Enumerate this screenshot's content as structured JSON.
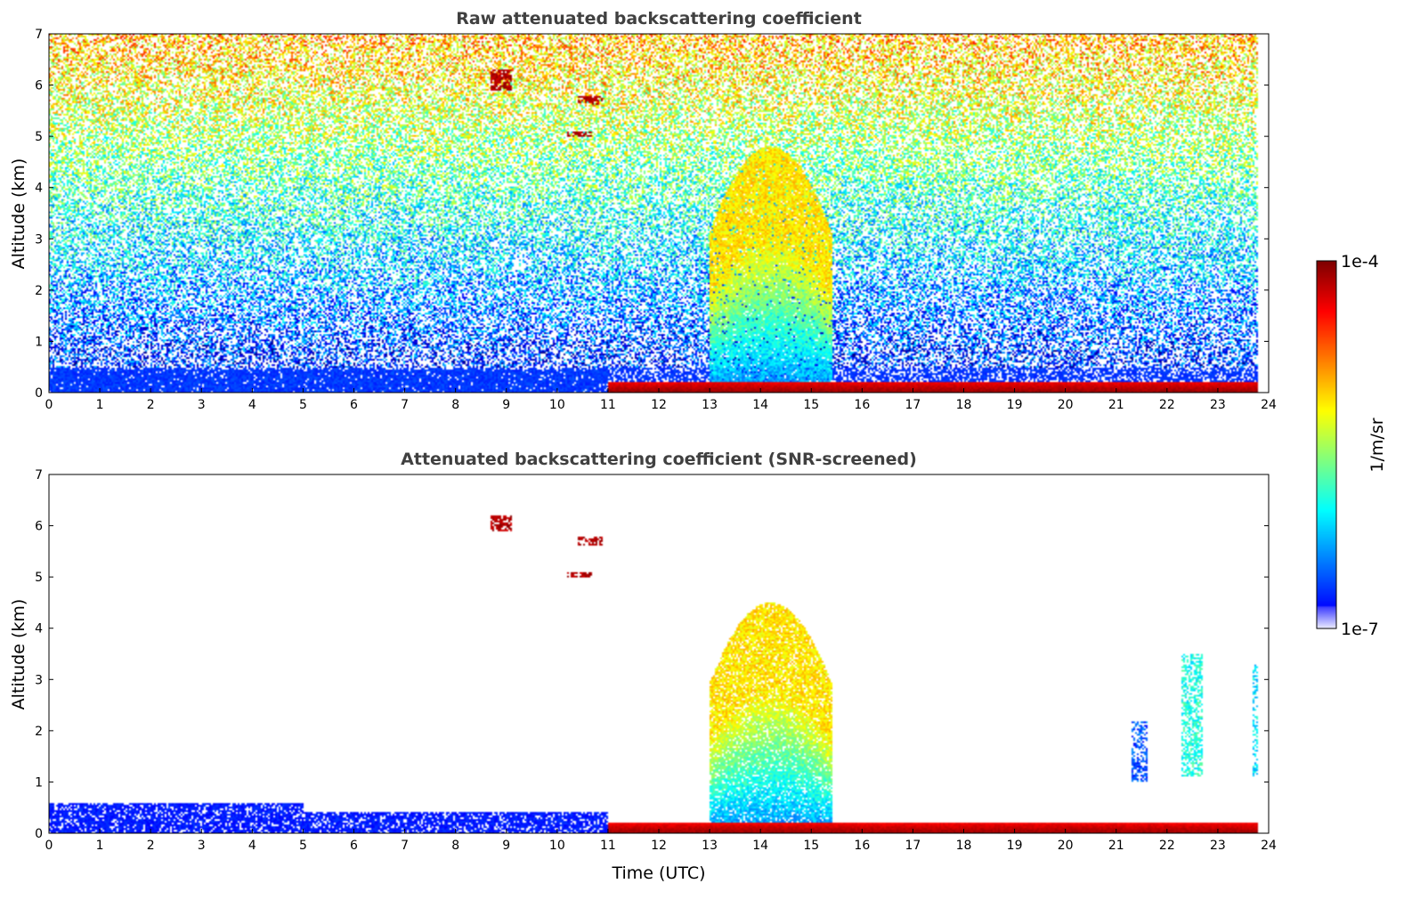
{
  "chart_data": [
    {
      "type": "heatmap",
      "title": "Raw attenuated backscattering coefficient",
      "xlabel": "",
      "ylabel": "Altitude (km)",
      "xlim": [
        0,
        24
      ],
      "ylim": [
        0,
        7
      ],
      "xticks": [
        0,
        1,
        2,
        3,
        4,
        5,
        6,
        7,
        8,
        9,
        10,
        11,
        12,
        13,
        14,
        15,
        16,
        17,
        18,
        19,
        20,
        21,
        22,
        23,
        24
      ],
      "yticks": [
        0,
        1,
        2,
        3,
        4,
        5,
        6,
        7
      ],
      "data_end_x": 23.8,
      "features": [
        {
          "kind": "noise_background",
          "x_range": [
            0,
            23.8
          ],
          "y_range": [
            0.5,
            7
          ],
          "level": "high at top, decreasing downward"
        },
        {
          "kind": "aerosol_layer",
          "x_range": [
            0,
            11
          ],
          "y_range": [
            0,
            0.45
          ],
          "level": 0.18
        },
        {
          "kind": "surface_band",
          "x_range": [
            11,
            23.8
          ],
          "y_range": [
            0,
            0.22
          ],
          "level": 0.98
        },
        {
          "kind": "plume",
          "x_range": [
            13,
            15.4
          ],
          "y_range": [
            0,
            4.8
          ],
          "level": 0.6
        },
        {
          "kind": "cloud",
          "x_range": [
            8.7,
            9.1
          ],
          "y_range": [
            5.9,
            6.3
          ],
          "level": 0.95
        },
        {
          "kind": "cloud",
          "x_range": [
            10.4,
            10.9
          ],
          "y_range": [
            5.6,
            5.8
          ],
          "level": 0.95
        },
        {
          "kind": "cloud",
          "x_range": [
            10.2,
            10.7
          ],
          "y_range": [
            5.0,
            5.1
          ],
          "level": 0.95
        }
      ]
    },
    {
      "type": "heatmap",
      "title": "Attenuated backscattering coefficient (SNR-screened)",
      "xlabel": "Time (UTC)",
      "ylabel": "Altitude (km)",
      "xlim": [
        0,
        24
      ],
      "ylim": [
        0,
        7
      ],
      "xticks": [
        0,
        1,
        2,
        3,
        4,
        5,
        6,
        7,
        8,
        9,
        10,
        11,
        12,
        13,
        14,
        15,
        16,
        17,
        18,
        19,
        20,
        21,
        22,
        23,
        24
      ],
      "yticks": [
        0,
        1,
        2,
        3,
        4,
        5,
        6,
        7
      ],
      "data_end_x": 23.8,
      "features": [
        {
          "kind": "aerosol_layer",
          "x_range": [
            0,
            5
          ],
          "y_range": [
            0,
            0.6
          ],
          "level": 0.15
        },
        {
          "kind": "aerosol_layer",
          "x_range": [
            5,
            11
          ],
          "y_range": [
            0,
            0.4
          ],
          "level": 0.15
        },
        {
          "kind": "plume",
          "x_range": [
            13,
            15.4
          ],
          "y_range": [
            0,
            4.5
          ],
          "level": 0.6
        },
        {
          "kind": "surface_band",
          "x_range": [
            11,
            23.8
          ],
          "y_range": [
            0,
            0.2
          ],
          "level": 0.98
        },
        {
          "kind": "column",
          "x_range": [
            22.3,
            22.7
          ],
          "y_range": [
            1.1,
            3.5
          ],
          "level": 0.4
        },
        {
          "kind": "column",
          "x_range": [
            21.3,
            21.6
          ],
          "y_range": [
            1.0,
            2.2
          ],
          "level": 0.2
        },
        {
          "kind": "column",
          "x_range": [
            23.7,
            23.8
          ],
          "y_range": [
            1.1,
            3.3
          ],
          "level": 0.35
        },
        {
          "kind": "cloud",
          "x_range": [
            8.7,
            9.1
          ],
          "y_range": [
            5.9,
            6.2
          ],
          "level": 0.95
        },
        {
          "kind": "cloud",
          "x_range": [
            10.4,
            10.9
          ],
          "y_range": [
            5.6,
            5.8
          ],
          "level": 0.95
        },
        {
          "kind": "cloud",
          "x_range": [
            10.2,
            10.7
          ],
          "y_range": [
            5.0,
            5.1
          ],
          "level": 0.95
        }
      ]
    }
  ],
  "colorbar": {
    "max_label": "1e-4",
    "min_label": "1e-7",
    "unit": "1/m/sr",
    "scale": "log",
    "colormap": "jet"
  }
}
